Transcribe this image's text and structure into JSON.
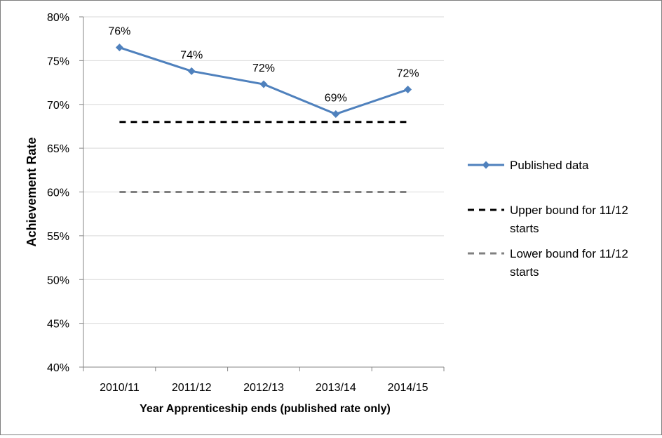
{
  "chart_data": {
    "type": "line",
    "title": "",
    "xlabel": "Year Apprenticeship ends (published rate only)",
    "ylabel": "Achievement Rate",
    "categories": [
      "2010/11",
      "2011/12",
      "2012/13",
      "2013/14",
      "2014/15"
    ],
    "ylim": [
      0.4,
      0.8
    ],
    "yticks": [
      0.4,
      0.45,
      0.5,
      0.55,
      0.6,
      0.65,
      0.7,
      0.75,
      0.8
    ],
    "ytick_labels": [
      "40%",
      "45%",
      "50%",
      "55%",
      "60%",
      "65%",
      "70%",
      "75%",
      "80%"
    ],
    "grid": true,
    "legend_position": "right",
    "series": [
      {
        "name": "Published data",
        "style": "solid-diamond",
        "color": "#4f81bd",
        "values": [
          0.765,
          0.738,
          0.723,
          0.689,
          0.717
        ],
        "labels": [
          "76%",
          "74%",
          "72%",
          "69%",
          "72%"
        ]
      },
      {
        "name": "Upper bound for 11/12 starts",
        "style": "dashed",
        "color": "#000000",
        "values": [
          0.68,
          0.68,
          0.68,
          0.68,
          0.68
        ]
      },
      {
        "name": "Lower bound for 11/12 starts",
        "style": "dashed",
        "color": "#808080",
        "values": [
          0.6,
          0.6,
          0.6,
          0.6,
          0.6
        ]
      }
    ],
    "legend": [
      {
        "lines": [
          "Published data"
        ]
      },
      {
        "lines": [
          "Upper bound for 11/12",
          "starts"
        ]
      },
      {
        "lines": [
          "Lower bound for 11/12",
          "starts"
        ]
      }
    ]
  }
}
